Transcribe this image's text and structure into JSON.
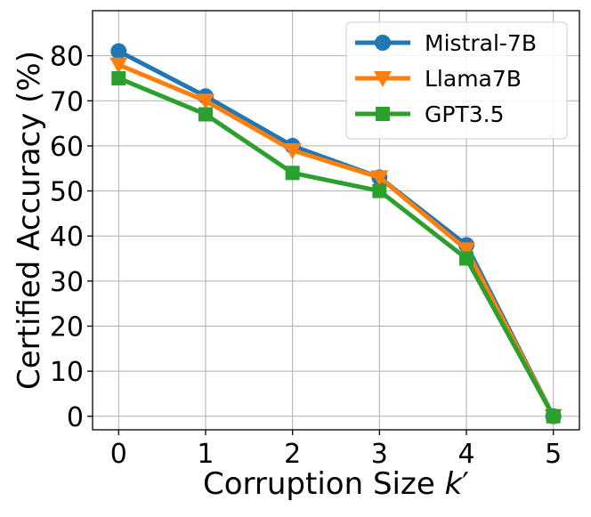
{
  "chart_data": {
    "type": "line",
    "x": [
      0,
      1,
      2,
      3,
      4,
      5
    ],
    "xlabel": "Corruption Size k′",
    "ylabel": "Certified Accuracy (%)",
    "xlim": [
      -0.3,
      5.3
    ],
    "ylim": [
      -3,
      90
    ],
    "xticks": [
      0,
      1,
      2,
      3,
      4,
      5
    ],
    "yticks": [
      0,
      10,
      20,
      30,
      40,
      50,
      60,
      70,
      80
    ],
    "grid": true,
    "legend_position": "top-right",
    "series": [
      {
        "name": "Mistral-7B",
        "values": [
          81,
          71,
          60,
          53,
          38,
          0
        ],
        "color": "#1f77b4",
        "marker": "circle"
      },
      {
        "name": "Llama7B",
        "values": [
          78,
          70,
          59,
          53,
          37,
          0
        ],
        "color": "#ff7f0e",
        "marker": "triangle-down"
      },
      {
        "name": "GPT3.5",
        "values": [
          75,
          67,
          54,
          50,
          35,
          0
        ],
        "color": "#2ca02c",
        "marker": "square"
      }
    ]
  }
}
